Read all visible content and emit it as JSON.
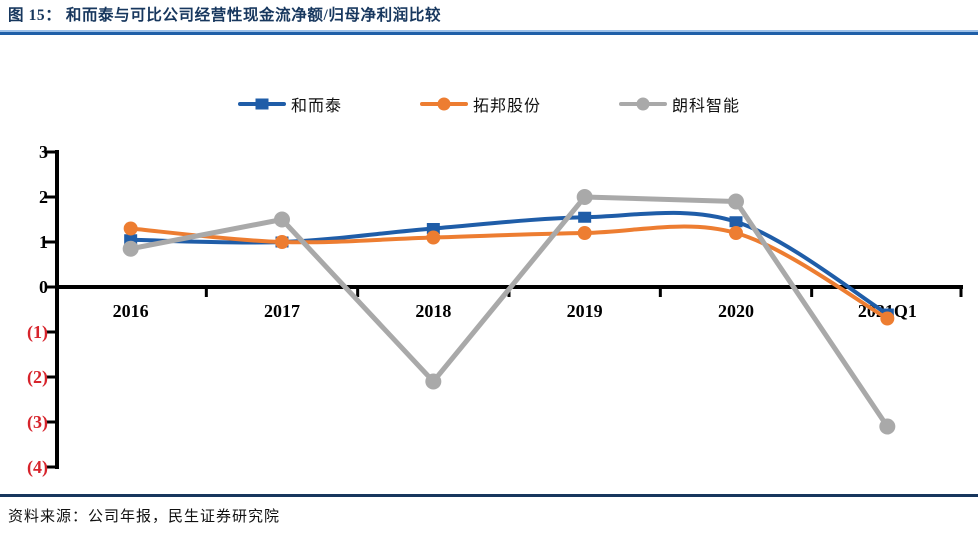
{
  "header": {
    "title": "图 15： 和而泰与可比公司经营性现金流净额/归母净利润比较"
  },
  "footer": {
    "source": "资料来源：公司年报，民生证券研究院"
  },
  "colors": {
    "title_navy": "#17375E",
    "rule_dark_blue": "#1F5FA8",
    "rule_light_blue": "#9CC0E8",
    "footer_rule_navy": "#17365D",
    "axis_black": "#000000",
    "negative_red": "#D7242C",
    "series_blue": "#1F5DA8",
    "series_orange": "#ED7D31",
    "series_gray": "#A9A9A9"
  },
  "chart_data": {
    "type": "line",
    "title": "和而泰与可比公司经营性现金流净额/归母净利润比较",
    "categories": [
      "2016",
      "2017",
      "2018",
      "2019",
      "2020",
      "2021Q1"
    ],
    "series": [
      {
        "name": "和而泰",
        "color": "#1F5DA8",
        "marker": "square",
        "smooth": true,
        "values": [
          1.05,
          1.0,
          1.3,
          1.55,
          1.45,
          -0.6
        ]
      },
      {
        "name": "拓邦股份",
        "color": "#ED7D31",
        "marker": "circle",
        "smooth": true,
        "values": [
          1.3,
          1.0,
          1.1,
          1.2,
          1.2,
          -0.7
        ]
      },
      {
        "name": "朗科智能",
        "color": "#A9A9A9",
        "marker": "circle",
        "smooth": false,
        "values": [
          0.85,
          1.5,
          -2.1,
          2.0,
          1.9,
          -3.1
        ]
      }
    ],
    "y_axis": {
      "ticks": [
        {
          "label": "3",
          "value": 3
        },
        {
          "label": "2",
          "value": 2
        },
        {
          "label": "1",
          "value": 1
        },
        {
          "label": "0",
          "value": 0
        },
        {
          "label": "(1)",
          "value": -1
        },
        {
          "label": "(2)",
          "value": -2
        },
        {
          "label": "(3)",
          "value": -3
        },
        {
          "label": "(4)",
          "value": -4
        }
      ],
      "range": [
        -4,
        3
      ],
      "negative_style": "red-parentheses"
    },
    "xlabel": "",
    "ylabel": "",
    "grid": false,
    "legend_position": "top"
  }
}
